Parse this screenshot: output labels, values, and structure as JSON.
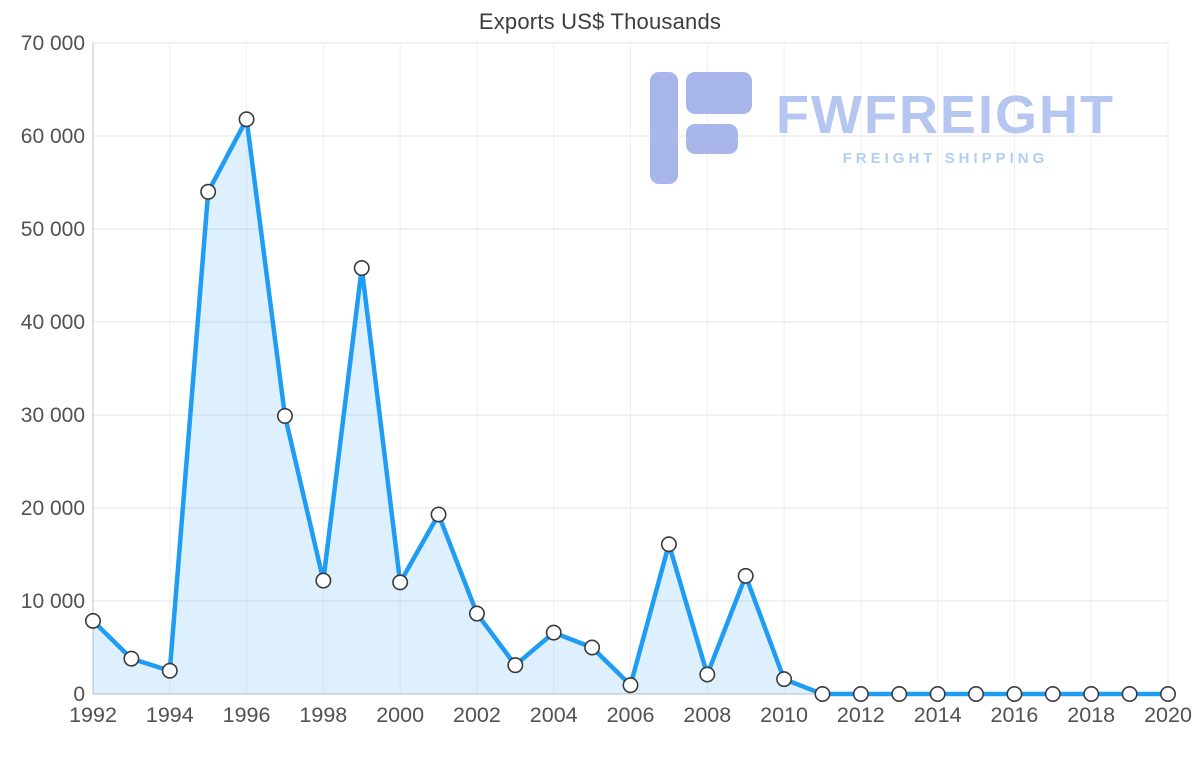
{
  "title": "Exports US$ Thousands",
  "watermark": {
    "brand": "FWFREIGHT",
    "tagline": "FREIGHT SHIPPING"
  },
  "chart_data": {
    "type": "area",
    "title": "Exports US$ Thousands",
    "xlabel": "",
    "ylabel": "",
    "x": [
      1992,
      1993,
      1994,
      1995,
      1996,
      1997,
      1998,
      1999,
      2000,
      2001,
      2002,
      2003,
      2004,
      2005,
      2006,
      2007,
      2008,
      2009,
      2010,
      2011,
      2012,
      2013,
      2014,
      2015,
      2016,
      2017,
      2018,
      2019,
      2020
    ],
    "series": [
      {
        "name": "Exports",
        "values": [
          7860,
          3800,
          2500,
          54000,
          61800,
          29900,
          12200,
          45800,
          12000,
          19300,
          8650,
          3100,
          6600,
          5000,
          950,
          16100,
          2100,
          12700,
          1600,
          0,
          0,
          0,
          0,
          0,
          0,
          0,
          0,
          0,
          0
        ]
      }
    ],
    "ylim": [
      0,
      70000
    ],
    "ytick_step": 10000,
    "xtick_step": 2,
    "grid": true,
    "legend": "none",
    "colors": {
      "line": "#1f9cf4",
      "fill": "rgba(31,156,244,0.15)",
      "marker_fill": "#ffffff",
      "marker_stroke": "#3a3a3a",
      "grid_h": "#e3e3e3",
      "grid_v": "#efefef",
      "axis": "#c2c2c2",
      "tick_text": "#515151"
    }
  }
}
